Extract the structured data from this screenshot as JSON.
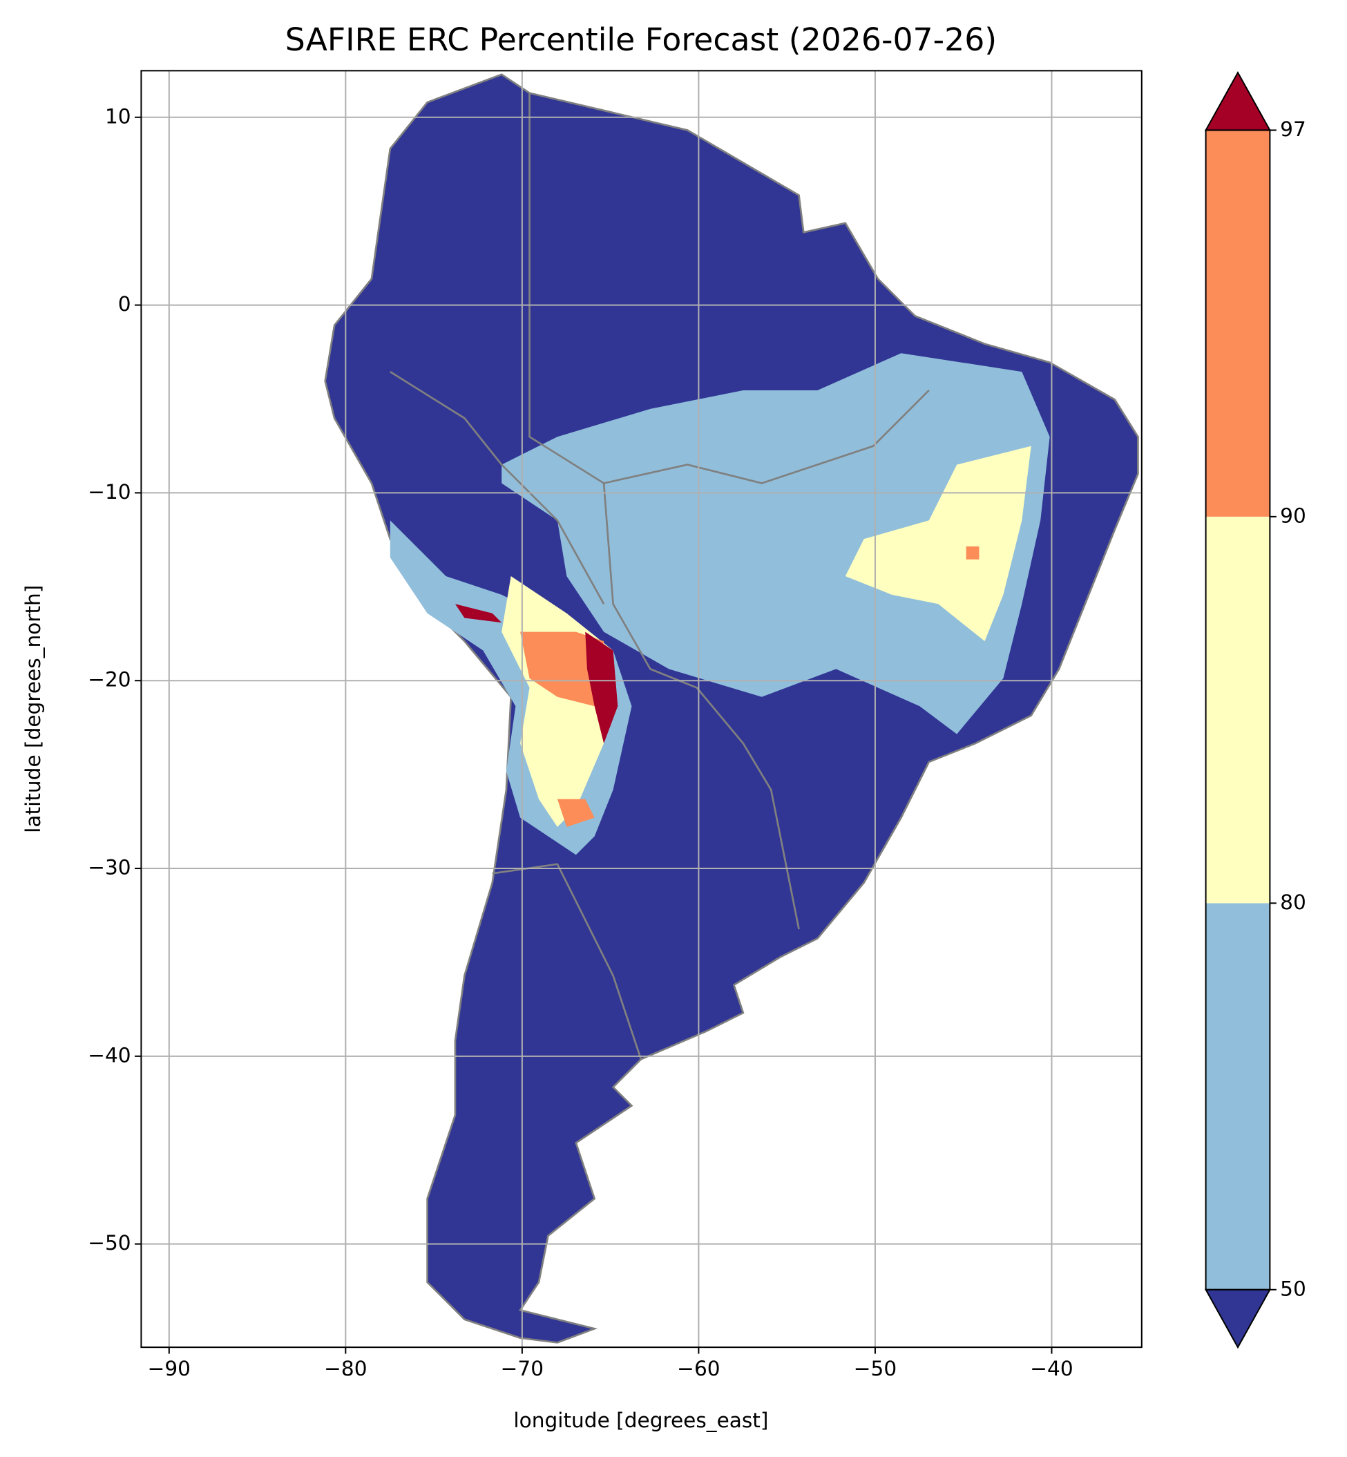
{
  "chart_data": {
    "type": "map",
    "title": "SAFIRE ERC Percentile Forecast (2026-07-26)",
    "x_label": "longitude [degrees_east]",
    "y_label": "latitude [degrees_north]",
    "xlim": [
      -91.58,
      -34.9
    ],
    "ylim": [
      -55.5,
      12.48
    ],
    "xticks": [
      {
        "value": -90,
        "label": "−90"
      },
      {
        "value": -80,
        "label": "−80"
      },
      {
        "value": -70,
        "label": "−70"
      },
      {
        "value": -60,
        "label": "−60"
      },
      {
        "value": -50,
        "label": "−50"
      },
      {
        "value": -40,
        "label": "−40"
      }
    ],
    "yticks": [
      10,
      0,
      {
        "value": -10,
        "label": "−10"
      },
      {
        "value": -20,
        "label": "−20"
      },
      {
        "value": -30,
        "label": "−30"
      },
      {
        "value": -40,
        "label": "−40"
      },
      {
        "value": -50,
        "label": "−50"
      }
    ],
    "grid": true,
    "colorbar": {
      "ticks": [
        50,
        80,
        90,
        97
      ],
      "colors": [
        "#313695",
        "#91bfdb",
        "#ffffbf",
        "#fc8d59",
        "#a50026"
      ],
      "extend": "both"
    }
  }
}
